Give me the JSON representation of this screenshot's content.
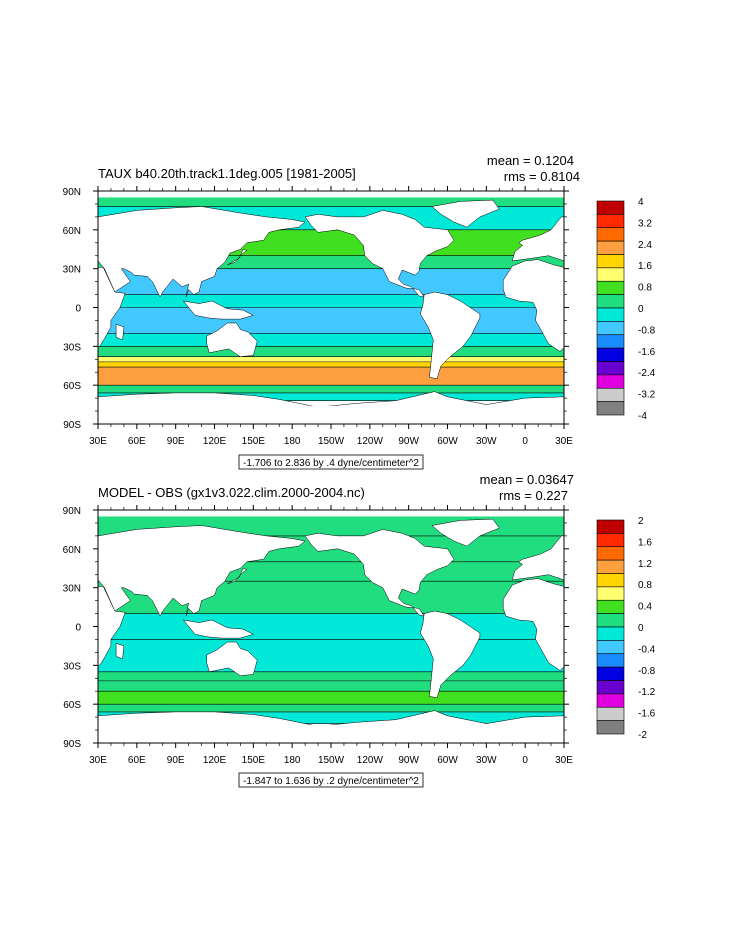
{
  "panels": [
    {
      "title": "TAUX b40.20th.track1.1deg.005 [1981-2005]",
      "mean": "mean = 0.1204",
      "rms": "rms = 0.8104",
      "range_label": "-1.706 to 2.836 by .4 dyne/centimeter^2",
      "colorbar": {
        "colors": [
          "#c00000",
          "#ff2a00",
          "#ff6a00",
          "#ffa040",
          "#ffd400",
          "#ffff70",
          "#40e020",
          "#20dd80",
          "#00e8d8",
          "#40c8ff",
          "#1a8cff",
          "#0000e0",
          "#6a00d0",
          "#e000e0",
          "#cccccc",
          "#808080"
        ],
        "labels": [
          "4",
          "3.2",
          "2.4",
          "1.6",
          "0.8",
          "0",
          "-0.8",
          "-1.6",
          "-2.4",
          "-3.2",
          "-4"
        ]
      },
      "field": {
        "bands": [
          {
            "lat_from": 90,
            "lat_to": 78,
            "level": 0.2
          },
          {
            "lat_from": 78,
            "lat_to": 60,
            "level": -0.2
          },
          {
            "lat_from": 60,
            "lat_to": 40,
            "level": 0.6
          },
          {
            "lat_from": 40,
            "lat_to": 30,
            "level": 0.2
          },
          {
            "lat_from": 30,
            "lat_to": 10,
            "level": -0.8
          },
          {
            "lat_from": 10,
            "lat_to": 0,
            "level": -0.4
          },
          {
            "lat_from": 0,
            "lat_to": -20,
            "level": -0.8
          },
          {
            "lat_from": -20,
            "lat_to": -30,
            "level": -0.3
          },
          {
            "lat_from": -30,
            "lat_to": -38,
            "level": 0.4
          },
          {
            "lat_from": -38,
            "lat_to": -42,
            "level": 1.2
          },
          {
            "lat_from": -42,
            "lat_to": -46,
            "level": 1.8
          },
          {
            "lat_from": -46,
            "lat_to": -60,
            "level": 2.4
          },
          {
            "lat_from": -60,
            "lat_to": -66,
            "level": 0.2
          },
          {
            "lat_from": -66,
            "lat_to": -72,
            "level": -0.4
          }
        ]
      }
    },
    {
      "title": "MODEL - OBS (gx1v3.022.clim.2000-2004.nc)",
      "mean": "mean = 0.03647",
      "rms": "rms = 0.227",
      "range_label": "-1.847 to 1.636 by .2 dyne/centimeter^2",
      "colorbar": {
        "colors": [
          "#c00000",
          "#ff2a00",
          "#ff6a00",
          "#ffa040",
          "#ffd400",
          "#ffff70",
          "#40e020",
          "#20dd80",
          "#00e8d8",
          "#40c8ff",
          "#1a8cff",
          "#0000e0",
          "#6a00d0",
          "#e000e0",
          "#cccccc",
          "#808080"
        ],
        "labels": [
          "2",
          "1.6",
          "1.2",
          "0.8",
          "0.4",
          "0",
          "-0.4",
          "-0.8",
          "-1.2",
          "-1.6",
          "-2"
        ]
      },
      "field": {
        "bands": [
          {
            "lat_from": 90,
            "lat_to": 70,
            "level": 0.1
          },
          {
            "lat_from": 70,
            "lat_to": 50,
            "level": 0.15
          },
          {
            "lat_from": 50,
            "lat_to": 35,
            "level": 0.1
          },
          {
            "lat_from": 35,
            "lat_to": 10,
            "level": 0.05
          },
          {
            "lat_from": 10,
            "lat_to": -10,
            "level": -0.05
          },
          {
            "lat_from": -10,
            "lat_to": -35,
            "level": 0.0
          },
          {
            "lat_from": -35,
            "lat_to": -42,
            "level": 0.1
          },
          {
            "lat_from": -42,
            "lat_to": -50,
            "level": 0.25
          },
          {
            "lat_from": -50,
            "lat_to": -60,
            "level": 0.4
          },
          {
            "lat_from": -60,
            "lat_to": -66,
            "level": 0.1
          },
          {
            "lat_from": -66,
            "lat_to": -75,
            "level": -0.05
          }
        ]
      }
    }
  ],
  "lon_ticks": [
    "30E",
    "60E",
    "90E",
    "120E",
    "150E",
    "180",
    "150W",
    "120W",
    "90W",
    "60W",
    "30W",
    "0",
    "30E"
  ],
  "lat_ticks": [
    "90N",
    "60N",
    "30N",
    "0",
    "30S",
    "60S",
    "90S"
  ]
}
